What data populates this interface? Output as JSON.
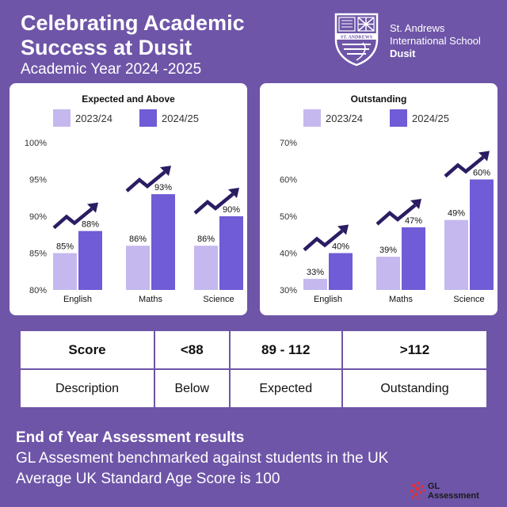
{
  "header": {
    "title_line1": "Celebrating Academic",
    "title_line2": "Success at Dusit",
    "subtitle": "Academic Year 2024 -2025"
  },
  "school": {
    "line1": "St. Andrews",
    "line2": "International School",
    "line3": "Dusit",
    "crest_text": "ST. ANDREWS"
  },
  "chart_data": [
    {
      "type": "bar",
      "title": "Expected and Above",
      "categories": [
        "English",
        "Maths",
        "Science"
      ],
      "series": [
        {
          "name": "2023/24",
          "values": [
            85,
            86,
            86
          ]
        },
        {
          "name": "2024/25",
          "values": [
            88,
            93,
            90
          ]
        }
      ],
      "data_labels": [
        [
          "85%",
          "86%",
          "86%"
        ],
        [
          "88%",
          "93%",
          "90%"
        ]
      ],
      "ylim": [
        80,
        100
      ],
      "yticks": [
        80,
        85,
        90,
        95,
        100
      ],
      "ytick_labels": [
        "80%",
        "85%",
        "90%",
        "95%",
        "100%"
      ],
      "legend_position": "top",
      "grid": false
    },
    {
      "type": "bar",
      "title": "Outstanding",
      "categories": [
        "English",
        "Maths",
        "Science"
      ],
      "series": [
        {
          "name": "2023/24",
          "values": [
            33,
            39,
            49
          ]
        },
        {
          "name": "2024/25",
          "values": [
            40,
            47,
            60
          ]
        }
      ],
      "data_labels": [
        [
          "33%",
          "39%",
          "49%"
        ],
        [
          "40%",
          "47%",
          "60%"
        ]
      ],
      "ylim": [
        30,
        70
      ],
      "yticks": [
        30,
        40,
        50,
        60,
        70
      ],
      "ytick_labels": [
        "30%",
        "40%",
        "50%",
        "60%",
        "70%"
      ],
      "legend_position": "top",
      "grid": false
    }
  ],
  "colors": {
    "background": "#6e55a8",
    "series_2023": "#c4b8ee",
    "series_2024": "#6f5cd6",
    "arrow": "#2b1c63",
    "axis_text": "#333333"
  },
  "score_table": {
    "rows": [
      [
        "Score",
        "<88",
        "89 - 112",
        ">112"
      ],
      [
        "Description",
        "Below",
        "Expected",
        "Outstanding"
      ]
    ]
  },
  "footer": {
    "title": "End of Year Assessment results",
    "line1": "GL Assesment benchmarked against students in the UK",
    "line2": "Average UK Standard Age Score is 100"
  },
  "gl_logo": {
    "line1": "GL",
    "line2": "Assessment"
  }
}
